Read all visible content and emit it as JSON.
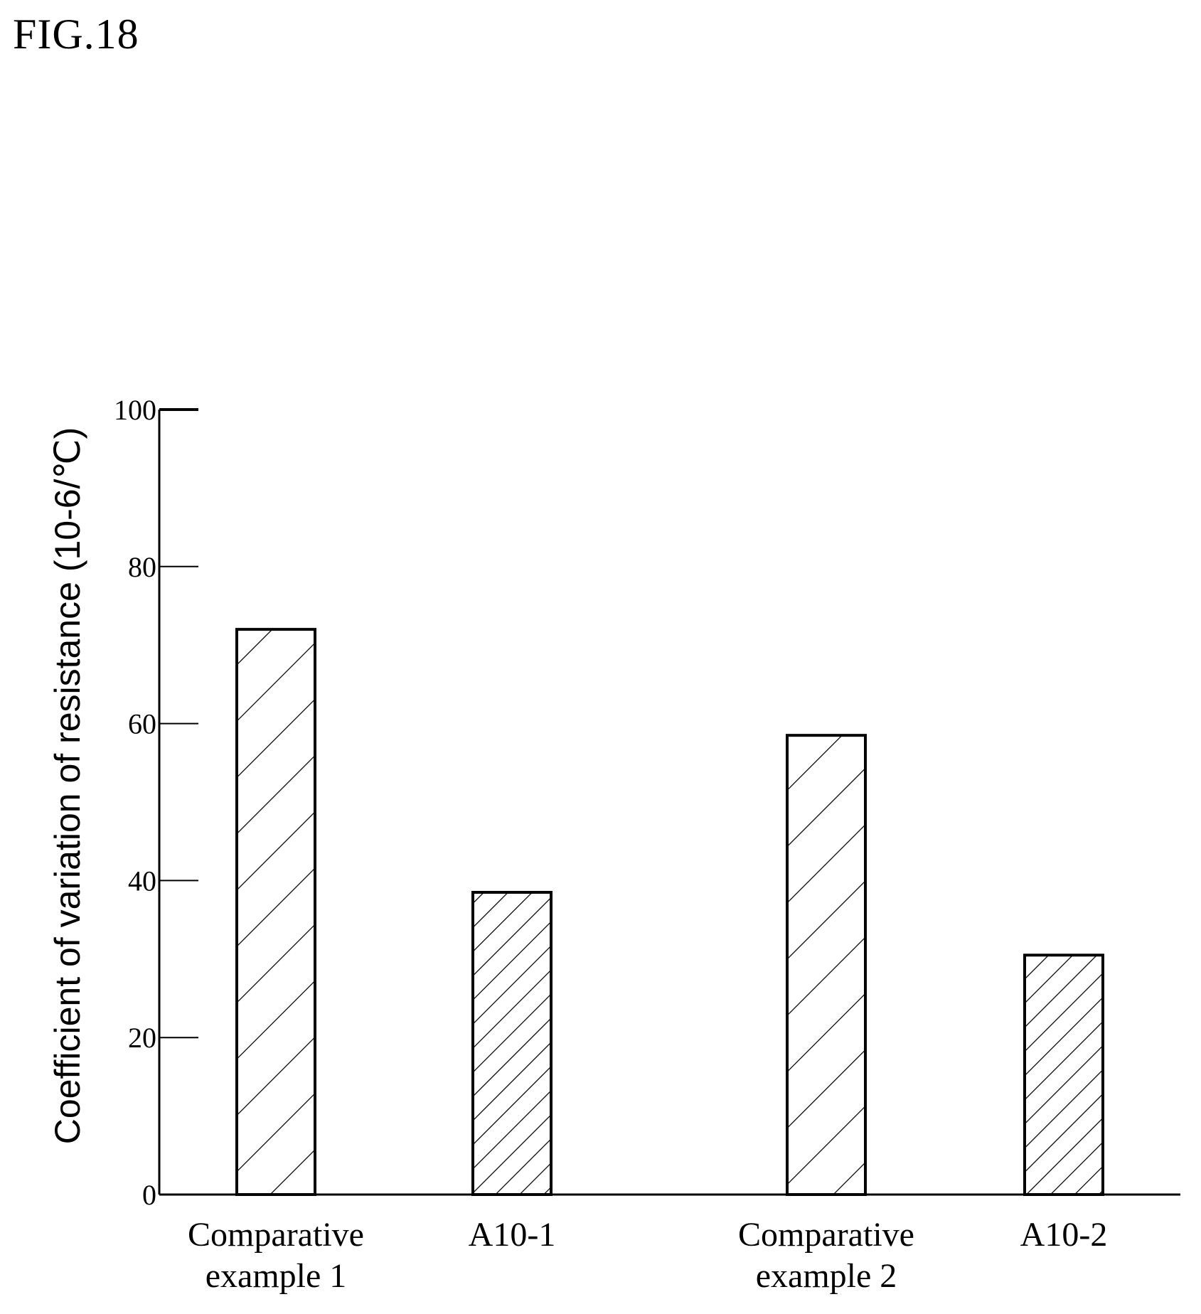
{
  "figure_label": "FIG.18",
  "chart_data": {
    "type": "bar",
    "title": "",
    "xlabel": "",
    "ylabel": "Coefficient of variation of resistance (10-6/℃)",
    "ylim": [
      0,
      100
    ],
    "yticks": [
      0,
      20,
      40,
      60,
      80,
      100
    ],
    "categories": [
      [
        "Comparative",
        "example 1"
      ],
      [
        "A10-1"
      ],
      [
        "Comparative",
        "example 2"
      ],
      [
        "A10-2"
      ]
    ],
    "values": [
      72,
      38.5,
      58.5,
      30.5
    ],
    "grid": false,
    "legend": "none",
    "bar_fill": "hatched",
    "colors": {
      "stroke": "#000000",
      "background": "#ffffff"
    }
  }
}
